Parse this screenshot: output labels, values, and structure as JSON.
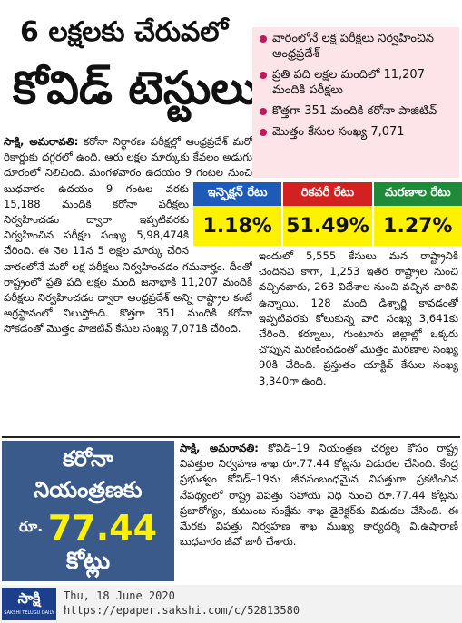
{
  "headline": {
    "line1": "6 లక్షలకు చేరువలో",
    "line2": "కోవిడ్ టెస్టులు"
  },
  "highlights": [
    "వారంలోనే లక్ష పరీక్షలు నిర్వహించిన ఆంధ్రప్రదేశ్",
    "ప్రతి పది లక్షల మందిలో 11,207 మందికి పరీక్షలు",
    "కొత్తగా 351 మందికి కరోనా పాజిటివ్",
    "మొత్తం కేసుల సంఖ్య 7,071"
  ],
  "rates": [
    {
      "label": "ఇన్ఫెక్షన్ రేటు",
      "value": "1.18%",
      "color": "#1e5bb8"
    },
    {
      "label": "రికవరీ రేటు",
      "value": "51.49%",
      "color": "#d32020"
    },
    {
      "label": "మరణాల రేటు",
      "value": "1.27%",
      "color": "#1f8a3a"
    }
  ],
  "story1": {
    "dateline": "సాక్షి, అమరావతి:",
    "left": "కరోనా నిర్ధారణ పరీక్షల్లో ఆంధ్రప్రదేశ్ మరో రికార్డుకు దగ్గరలో ఉంది. ఆరు లక్షల మార్కుకు కేవలం అడుగు దూరంలో నిలిచింది. మంగళవారం ఉదయం 9 గంటల నుంచి బుధవారం ఉదయం 9 గంటల వరకు 15,188 మందికి కరోనా పరీక్షలు నిర్వహించడం ద్వారా ఇప్పటివరకు నిర్వహించిన పరీక్షల సంఖ్య 5,98,474కి చేరింది. ఈ నెల 11న 5 లక్షల మార్కు చేరిన వారంలోనే మరో లక్ష పరీక్షలు నిర్వహించడం గమనార్హం. దీంతో రాష్ట్రంలో ప్రతి పది లక్షల మంది జనాభాకి 11,207 మందికి పరీక్షలు నిర్వహించడం ద్వారా ఆంధ్రప్రదేశ్ అన్ని రాష్ట్రాల కంటే అగ్రస్థానంలో నిలుస్తోంది. కొత్తగా 351 మందికి కరోనా సోకడంతో మొత్తం పాజిటివ్ కేసుల సంఖ్య 7,071కి చేరింది.",
    "right": "ఇందులో 5,555 కేసులు మన రాష్ట్రానికి చెందినవి కాగా, 1,253 ఇతర రాష్ట్రాల నుంచి వచ్చినవారు, 263 విదేశాల నుంచి వచ్చిన వారివి ఉన్నాయి. 128 మంది డిశ్చార్జి కావడంతో ఇప్పటివరకు కోలుకున్న వారి సంఖ్య 3,641కు చేరింది. కర్నూలు, గుంటూరు జిల్లాల్లో ఒక్కరు చొప్పున మరణించడంతో మొత్తం మరణాల సంఖ్య 90కి చేరింది. ప్రస్తుతం యాక్టివ్ కేసుల సంఖ్య 3,340గా ఉంది."
  },
  "story2": {
    "box": {
      "line1": "కరోనా",
      "line2": "నియంత్రణకు",
      "currency": "రూ.",
      "amount": "77.44",
      "unit": "కోట్లు"
    },
    "dateline": "సాక్షి, అమరావతి:",
    "text": "కోవిడ్–19 నియంత్రణ చర్యల కోసం రాష్ట్ర విపత్తుల నిర్వహణ శాఖ రూ.77.44 కోట్లను విడుదల చేసింది. కేంద్ర ప్రభుత్వం కోవిడ్–19ను జీవసంబంధమైన విపత్తుగా ప్రకటించిన నేపథ్యంలో రాష్ట్ర విపత్తు సహాయ నిధి నుంచి రూ.77.44 కోట్లను ప్రజారోగ్యం, కుటుంబ సంక్షేమ శాఖ డైరెక్టర్‌కు విడుదల చేసింది. ఈ మేరకు విపత్తు నిర్వహణ శాఖ ముఖ్య కార్యదర్శి వి.ఉషారాణి బుధవారం జీవో జారీ చేశారు."
  },
  "footer": {
    "logo": "సాక్షి",
    "logo_sub": "SAKSHI TELUGU DAILY",
    "date": "Thu, 18 June 2020",
    "url": "https://epaper.sakshi.com/c/52813580"
  }
}
